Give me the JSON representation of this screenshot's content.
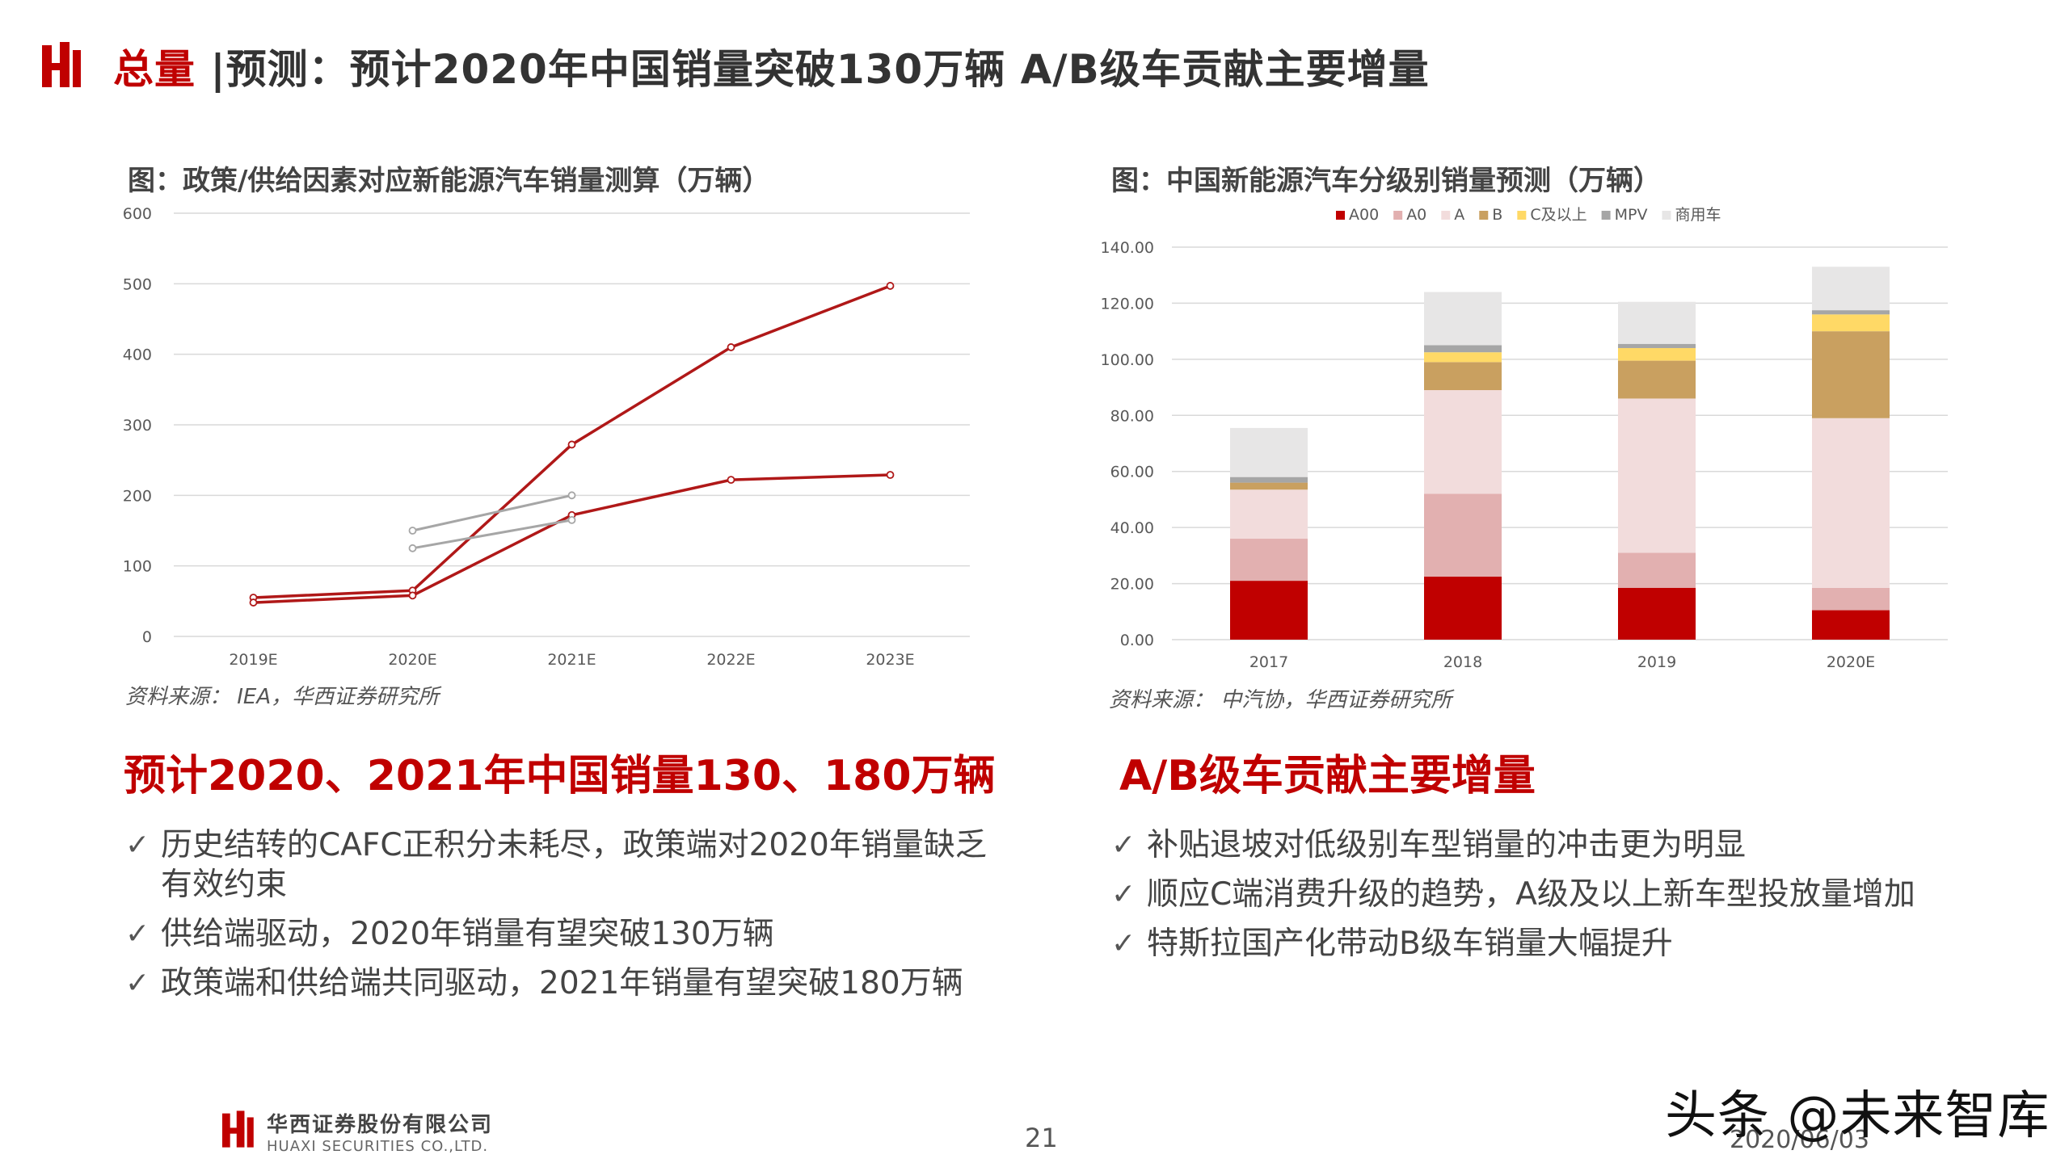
{
  "header": {
    "title_accent": "总量",
    "title_rest": " |预测：预计2020年中国销量突破130万辆 A/B级车贡献主要增量"
  },
  "left": {
    "chart_title": "图：政策/供给因素对应新能源汽车销量测算（万辆）",
    "source": "资料来源： IEA，华西证券研究所",
    "headline": "预计2020、2021年中国销量130、180万辆",
    "bullets": [
      "历史结转的CAFC正积分未耗尽，政策端对2020年销量缺乏有效约束",
      "供给端驱动，2020年销量有望突破130万辆",
      "政策端和供给端共同驱动，2021年销量有望突破180万辆"
    ]
  },
  "right": {
    "chart_title": "图：中国新能源汽车分级别销量预测（万辆）",
    "source": "资料来源： 中汽协，华西证券研究所",
    "headline": "A/B级车贡献主要增量",
    "bullets": [
      "补贴退坡对低级别车型销量的冲击更为明显",
      "顺应C端消费升级的趋势，A级及以上新车型投放量增加",
      "特斯拉国产化带动B级车销量大幅提升"
    ]
  },
  "footer": {
    "company_cn": "华西证券股份有限公司",
    "company_en": "HUAXI SECURITIES CO.,LTD.",
    "page_number": "21",
    "date": "2020/06/03",
    "watermark": "头条 @未来智库"
  },
  "colors": {
    "brand_red": "#c00000",
    "line_red": "#b01818",
    "line_gray": "#a6a6a6"
  },
  "chart_data": [
    {
      "type": "line",
      "title": "图：政策/供给因素对应新能源汽车销量测算（万辆）",
      "categories": [
        "2019E",
        "2020E",
        "2021E",
        "2022E",
        "2023E"
      ],
      "ylim": [
        0,
        600
      ],
      "yticks": [
        "0",
        "100",
        "200",
        "300",
        "400",
        "500",
        "600"
      ],
      "grid": true,
      "series": [
        {
          "color": "#b01818",
          "values": [
            55,
            65,
            272,
            410,
            497
          ]
        },
        {
          "color": "#b01818",
          "values": [
            48,
            58,
            172,
            222,
            229
          ]
        },
        {
          "color": "#a6a6a6",
          "values": [
            null,
            150,
            200,
            null,
            null
          ]
        },
        {
          "color": "#a6a6a6",
          "values": [
            null,
            125,
            165,
            null,
            null
          ]
        }
      ]
    },
    {
      "type": "bar",
      "stacked": true,
      "title": "图：中国新能源汽车分级别销量预测（万辆）",
      "categories": [
        "2017",
        "2018",
        "2019",
        "2020E"
      ],
      "ylim": [
        0,
        140
      ],
      "yticks": [
        "0.00",
        "20.00",
        "40.00",
        "60.00",
        "80.00",
        "100.00",
        "120.00",
        "140.00"
      ],
      "grid": true,
      "legend_position": "top",
      "series": [
        {
          "name": "A00",
          "color": "#c00000",
          "values": [
            21,
            22.5,
            18.5,
            10.5
          ]
        },
        {
          "name": "A0",
          "color": "#e2b0b0",
          "values": [
            15,
            29.5,
            12.5,
            8
          ]
        },
        {
          "name": "A",
          "color": "#f2dcdc",
          "values": [
            17.5,
            37,
            55,
            60.5
          ]
        },
        {
          "name": "B",
          "color": "#c9a060",
          "values": [
            2.5,
            10,
            13.5,
            31
          ]
        },
        {
          "name": "C及以上",
          "color": "#ffd966",
          "values": [
            0,
            3.5,
            4.5,
            6
          ]
        },
        {
          "name": "MPV",
          "color": "#a6a6a6",
          "values": [
            2,
            2.5,
            1.5,
            1.5
          ]
        },
        {
          "name": "商用车",
          "color": "#e7e6e6",
          "values": [
            17.5,
            19,
            15,
            15.5
          ]
        }
      ]
    }
  ]
}
